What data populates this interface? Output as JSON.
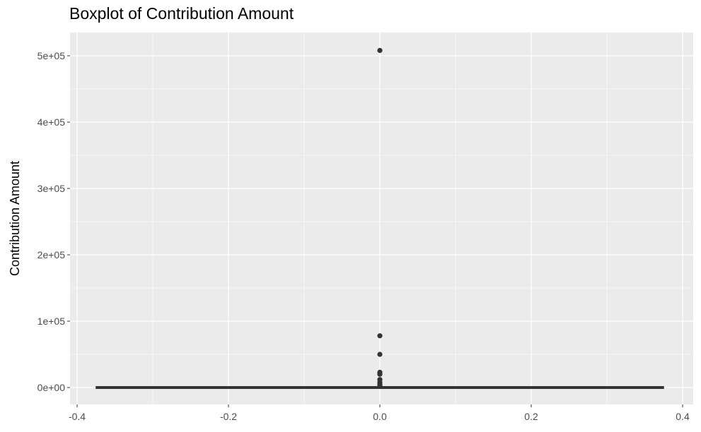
{
  "chart_data": {
    "type": "box",
    "title": "Boxplot of Contribution Amount",
    "xlabel": "",
    "ylabel": "Contribution Amount",
    "xlim": [
      -0.4,
      0.4
    ],
    "ylim": [
      0,
      500000
    ],
    "x_ticks": [
      {
        "value": -0.4,
        "label": "-0.4"
      },
      {
        "value": -0.2,
        "label": "-0.2"
      },
      {
        "value": 0.0,
        "label": "0.0"
      },
      {
        "value": 0.2,
        "label": "0.2"
      },
      {
        "value": 0.4,
        "label": "0.4"
      }
    ],
    "y_ticks": [
      {
        "value": 0,
        "label": "0e+00"
      },
      {
        "value": 100000,
        "label": "1e+05"
      },
      {
        "value": 200000,
        "label": "2e+05"
      },
      {
        "value": 300000,
        "label": "3e+05"
      },
      {
        "value": 400000,
        "label": "4e+05"
      },
      {
        "value": 500000,
        "label": "5e+05"
      }
    ],
    "box": {
      "x": 0,
      "x_range": [
        -0.375,
        0.375
      ],
      "min": 0,
      "q1": 0,
      "median": 0,
      "q3": 0,
      "max": 0
    },
    "outliers": [
      508000,
      78000,
      50000,
      23000,
      20000,
      12000,
      8000,
      5000,
      2500
    ],
    "grid": true,
    "legend": "none",
    "colors": {
      "panel_background": "#EBEBEB",
      "grid": "#FFFFFF",
      "marks": "#333333",
      "tick_text": "#4D4D4D"
    }
  }
}
